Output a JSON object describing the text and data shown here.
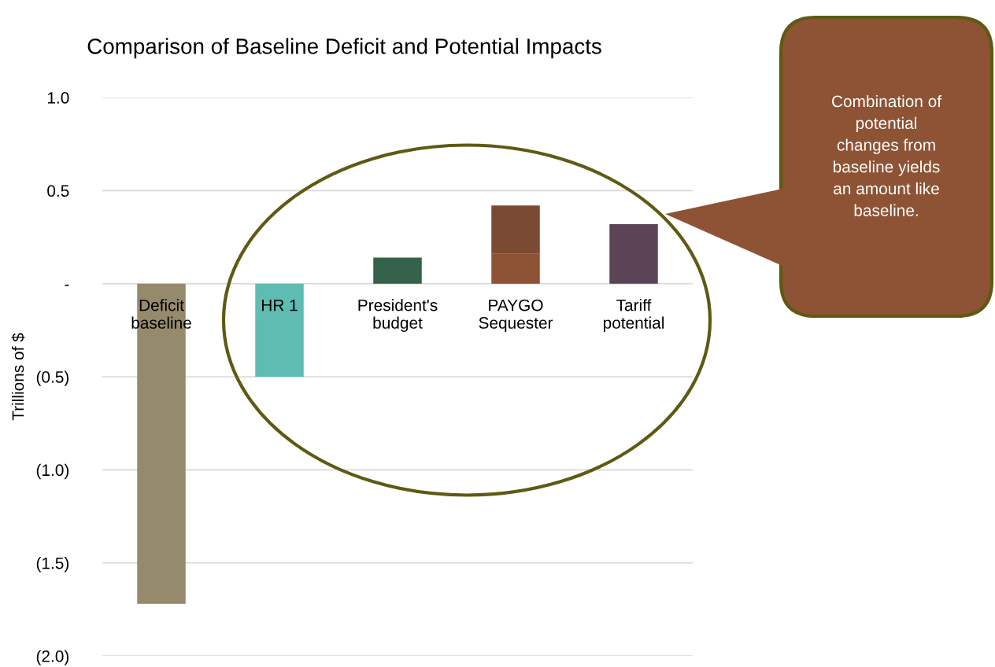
{
  "chart_data": {
    "type": "bar",
    "title": "Comparison of Baseline Deficit and Potential Impacts",
    "ylabel": "Trillions of $",
    "categories": [
      "Deficit\nbaseline",
      "HR 1",
      "President's\nbudget",
      "PAYGO\nSequester",
      "Tariff\npotential"
    ],
    "stacked": true,
    "series": [
      {
        "colors": [
          "#968a6c",
          "#5fbcb2",
          "#336149",
          "#8e5334",
          "#5c4457"
        ],
        "values": [
          -1.72,
          -0.5,
          0.14,
          0.16,
          null
        ]
      },
      {
        "colors": [
          "#968a6c",
          "#5fbcb2",
          "#336149",
          "#7a4a32",
          "#5c4457"
        ],
        "values": [
          null,
          null,
          null,
          0.26,
          0.32
        ]
      }
    ],
    "ylim": [
      -2.0,
      1.0
    ],
    "yticks": [
      {
        "value": -2.0,
        "label": "(2.0)"
      },
      {
        "value": -1.5,
        "label": "(1.5)"
      },
      {
        "value": -1.0,
        "label": "(1.0)"
      },
      {
        "value": -0.5,
        "label": "(0.5)"
      },
      {
        "value": 0,
        "label": "-"
      },
      {
        "value": 0.5,
        "label": "0.5"
      },
      {
        "value": 1.0,
        "label": "1.0"
      }
    ],
    "grid": "y",
    "annotations": [
      "Combination of\npotential\nchanges from\nbaseline yields\nan amount like\nbaseline."
    ]
  }
}
